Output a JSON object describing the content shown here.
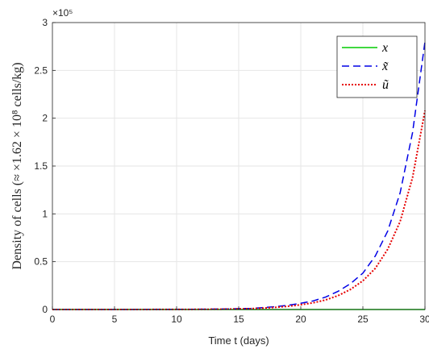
{
  "chart_data": {
    "type": "line",
    "title": "",
    "xlabel": "Time t (days)",
    "ylabel": "Density of cells (≈ ×1.62 × 10⁸ cells/kg)",
    "y_multiplier": "×10⁵",
    "xlim": [
      0,
      30
    ],
    "ylim": [
      0,
      3
    ],
    "x_ticks": [
      "0",
      "5",
      "10",
      "15",
      "20",
      "25",
      "30"
    ],
    "y_ticks": [
      "0",
      "0.5",
      "1",
      "1.5",
      "2",
      "2.5",
      "3"
    ],
    "grid": true,
    "legend_position": "top-right",
    "series": [
      {
        "name": "x",
        "color": "#00cc00",
        "style": "solid",
        "x": [
          0,
          5,
          10,
          15,
          20,
          25,
          30
        ],
        "y": [
          0,
          0,
          0,
          0,
          0,
          0,
          0
        ]
      },
      {
        "name": "x̃",
        "color": "#0000e6",
        "style": "dashed",
        "x": [
          0,
          5,
          10,
          12,
          14,
          16,
          17,
          18,
          19,
          20,
          21,
          22,
          23,
          24,
          25,
          26,
          27,
          28,
          29,
          30
        ],
        "y": [
          0,
          0.0003,
          0.001,
          0.003,
          0.006,
          0.012,
          0.02,
          0.03,
          0.045,
          0.065,
          0.09,
          0.13,
          0.19,
          0.27,
          0.38,
          0.56,
          0.82,
          1.22,
          1.85,
          2.8
        ]
      },
      {
        "name": "ũ",
        "color": "#e60000",
        "style": "dotted",
        "x": [
          0,
          5,
          10,
          12,
          14,
          16,
          17,
          18,
          19,
          20,
          21,
          22,
          23,
          24,
          25,
          26,
          27,
          28,
          29,
          30
        ],
        "y": [
          0,
          0.0002,
          0.0008,
          0.002,
          0.004,
          0.009,
          0.015,
          0.023,
          0.034,
          0.05,
          0.07,
          0.1,
          0.145,
          0.21,
          0.3,
          0.43,
          0.63,
          0.92,
          1.38,
          2.08
        ]
      }
    ]
  }
}
